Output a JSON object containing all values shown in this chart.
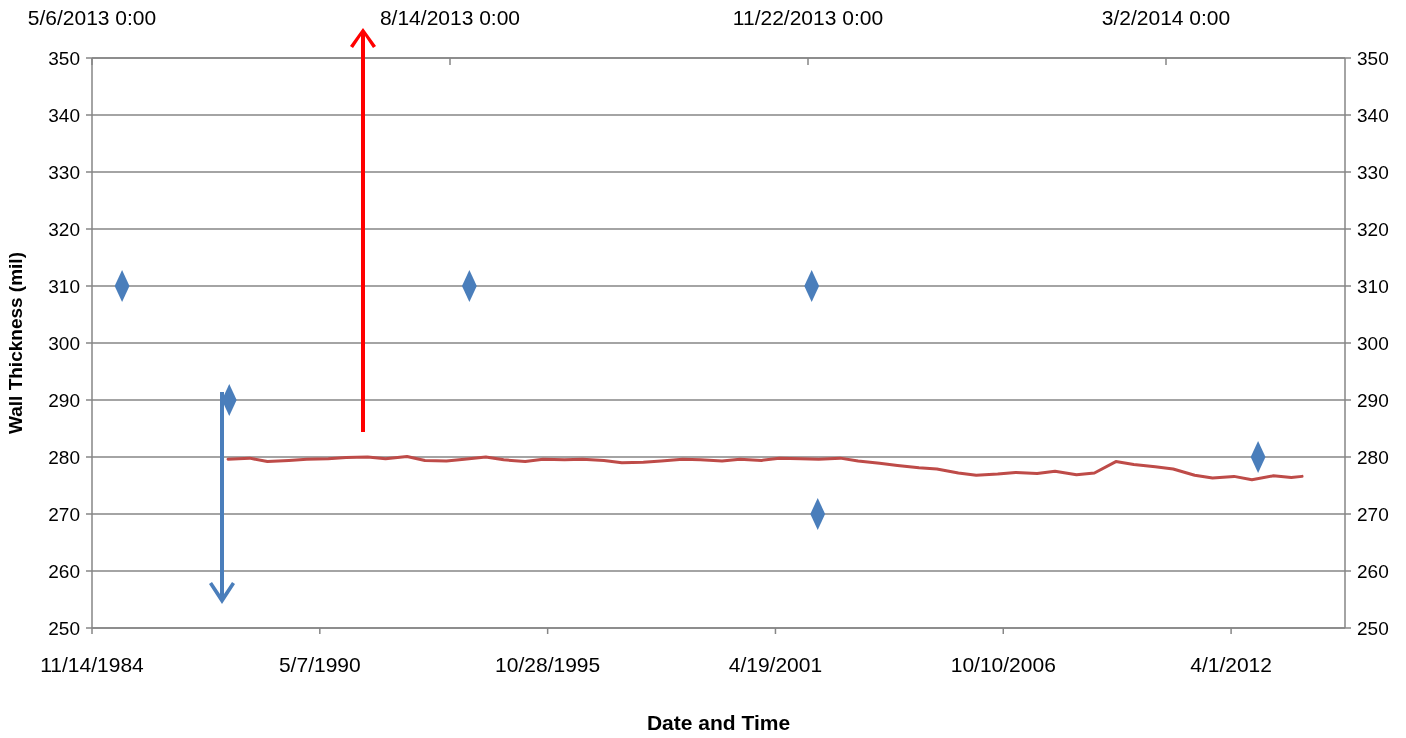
{
  "chart_data": {
    "type": "scatter",
    "xlabel": "Date and Time",
    "ylabel": "Wall Thickness (mil)",
    "xlim": [
      "1984-11-14",
      "2014-12-27"
    ],
    "xticks": [
      {
        "value": "1984-11-14",
        "label": "11/14/1984"
      },
      {
        "value": "1990-05-07",
        "label": "5/7/1990"
      },
      {
        "value": "1995-10-28",
        "label": "10/28/1995"
      },
      {
        "value": "2001-04-19",
        "label": "4/19/2001"
      },
      {
        "value": "2006-10-10",
        "label": "10/10/2006"
      },
      {
        "value": "2012-04-01",
        "label": "4/1/2012"
      }
    ],
    "x2lim": [
      "2013-05-06",
      "2014-04-21"
    ],
    "x2ticks": [
      {
        "value": "2013-05-06",
        "label": "5/6/2013 0:00"
      },
      {
        "value": "2013-08-14",
        "label": "8/14/2013 0:00"
      },
      {
        "value": "2013-11-22",
        "label": "11/22/2013 0:00"
      },
      {
        "value": "2014-03-02",
        "label": "3/2/2014 0:00"
      }
    ],
    "ylim": [
      250,
      350
    ],
    "yticks": [
      250,
      260,
      270,
      280,
      290,
      300,
      310,
      320,
      330,
      340,
      350
    ],
    "y2lim": [
      250,
      350
    ],
    "y2ticks": [
      250,
      260,
      270,
      280,
      290,
      300,
      310,
      320,
      330,
      340,
      350
    ],
    "grid": "y",
    "series": [
      {
        "marker": "diamond",
        "color": "#4a7ebb",
        "x": [
          "1985-08-05",
          "1988-03-03",
          "1993-12-10",
          "2002-03-03",
          "2002-04-25",
          "2012-11-24"
        ],
        "values": [
          310,
          290,
          310,
          310,
          270,
          280
        ]
      },
      {
        "type": "line",
        "axis": "x2",
        "marker": "none",
        "line_style": "solid",
        "color": "#be4b48",
        "x": [
          "2013-06-13",
          "2013-06-19",
          "2013-06-24",
          "2013-06-30",
          "2013-07-05",
          "2013-07-11",
          "2013-07-16",
          "2013-07-22",
          "2013-07-27",
          "2013-08-02",
          "2013-08-07",
          "2013-08-13",
          "2013-08-18",
          "2013-08-24",
          "2013-08-29",
          "2013-09-04",
          "2013-09-09",
          "2013-09-15",
          "2013-09-20",
          "2013-09-26",
          "2013-10-01",
          "2013-10-07",
          "2013-10-12",
          "2013-10-18",
          "2013-10-23",
          "2013-10-29",
          "2013-11-03",
          "2013-11-09",
          "2013-11-14",
          "2013-11-20",
          "2013-11-25",
          "2013-12-01",
          "2013-12-06",
          "2013-12-12",
          "2013-12-17",
          "2013-12-23",
          "2013-12-28",
          "2014-01-03",
          "2014-01-08",
          "2014-01-14",
          "2014-01-19",
          "2014-01-25",
          "2014-01-30",
          "2014-02-05",
          "2014-02-10",
          "2014-02-16",
          "2014-02-21",
          "2014-02-27",
          "2014-03-04",
          "2014-03-10",
          "2014-03-15",
          "2014-03-21",
          "2014-03-26",
          "2014-04-01",
          "2014-04-06",
          "2014-04-09"
        ],
        "values": [
          279.6,
          279.8,
          279.2,
          279.4,
          279.6,
          279.7,
          279.9,
          280.0,
          279.7,
          280.1,
          279.4,
          279.3,
          279.6,
          280.0,
          279.5,
          279.2,
          279.6,
          279.5,
          279.6,
          279.4,
          279.0,
          279.1,
          279.3,
          279.6,
          279.5,
          279.3,
          279.6,
          279.4,
          279.8,
          279.7,
          279.6,
          279.8,
          279.3,
          278.9,
          278.5,
          278.1,
          277.9,
          277.2,
          276.8,
          277.0,
          277.3,
          277.1,
          277.5,
          276.9,
          277.2,
          279.2,
          278.7,
          278.3,
          277.9,
          276.8,
          276.3,
          276.6,
          276.0,
          276.7,
          276.4,
          276.6
        ]
      }
    ]
  }
}
